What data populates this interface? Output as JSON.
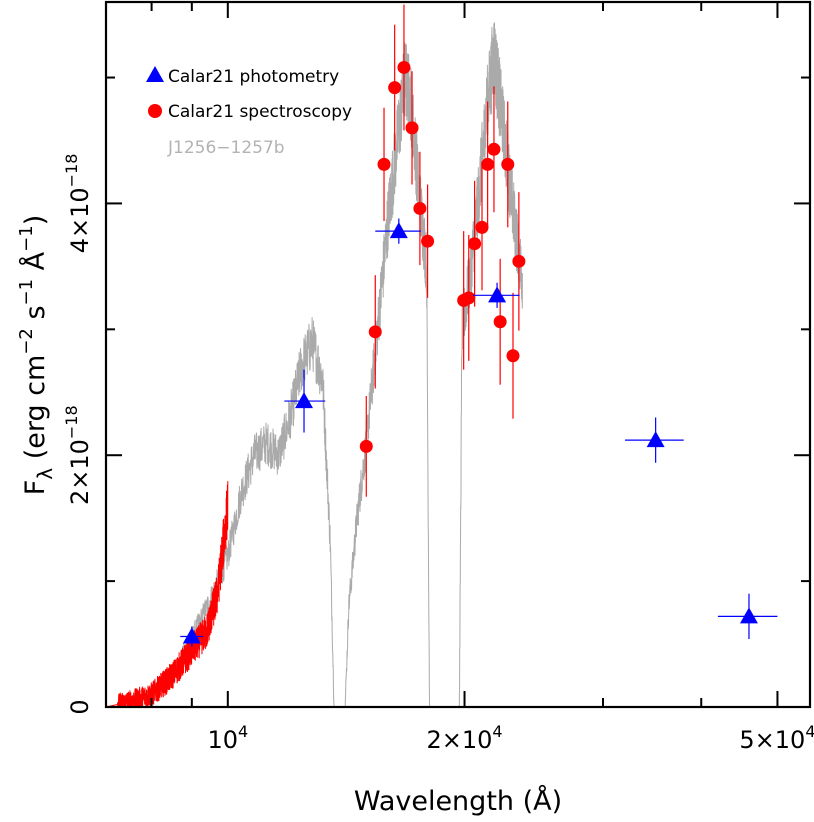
{
  "chart_data": {
    "type": "scatter",
    "xlabel": "Wavelength (Å)",
    "ylabel_parts": {
      "main": "F",
      "sub": "λ",
      "units": "(erg cm",
      "exp1": "−2",
      "s": " s",
      "exp2": "−1",
      "ang": " Å",
      "exp3": "−1",
      "close": ")"
    },
    "x_scale": "log",
    "xlim": [
      7000,
      55000
    ],
    "ylim": [
      0,
      5.6e-18
    ],
    "x_ticks": [
      {
        "value": 10000,
        "mant": "10",
        "exp": "4"
      },
      {
        "value": 20000,
        "mant": "2×10",
        "exp": "4"
      },
      {
        "value": 50000,
        "mant": "5×10",
        "exp": "4"
      }
    ],
    "y_ticks": [
      {
        "value": 0,
        "label": "0"
      },
      {
        "value": 2e-18,
        "mant": "2×10",
        "exp": "−18"
      },
      {
        "value": 4e-18,
        "mant": "4×10",
        "exp": "−18"
      }
    ],
    "y_minor_ticks": [
      1e-18,
      3e-18,
      5e-18
    ],
    "legend_position": "top-left",
    "colors": {
      "photometry": "#0000ff",
      "spectroscopy": "#ff0000",
      "model": "#aaaaaa",
      "optical_spectrum": "#ff0000"
    },
    "series": [
      {
        "name": "Calar21 photometry",
        "marker": "triangle",
        "points": [
          {
            "x": 9000,
            "y": 5.6e-19,
            "xerr": [
              8700,
              9300
            ],
            "yerr": 8e-20
          },
          {
            "x": 12500,
            "y": 2.43e-18,
            "xerr": [
              11800,
              13300
            ],
            "yerr": 2.5e-19
          },
          {
            "x": 16500,
            "y": 3.78e-18,
            "xerr": [
              15400,
              17600
            ],
            "yerr": 1e-19
          },
          {
            "x": 22000,
            "y": 3.27e-18,
            "xerr": [
              20500,
              23500
            ],
            "yerr": 1e-19
          },
          {
            "x": 35000,
            "y": 2.12e-18,
            "xerr": [
              32000,
              38000
            ],
            "yerr": 1.8e-19
          },
          {
            "x": 46000,
            "y": 7.2e-19,
            "xerr": [
              42000,
              50000
            ],
            "yerr": 1.8e-19
          }
        ]
      },
      {
        "name": "Calar21 spectroscopy",
        "marker": "circle",
        "points": [
          {
            "x": 15000,
            "y": 2.07e-18,
            "yerr": 4e-19
          },
          {
            "x": 15400,
            "y": 2.98e-18,
            "yerr": 4.5e-19
          },
          {
            "x": 15800,
            "y": 4.31e-18,
            "yerr": 4.5e-19
          },
          {
            "x": 16300,
            "y": 4.92e-18,
            "yerr": 5e-19
          },
          {
            "x": 16750,
            "y": 5.08e-18,
            "yerr": 5e-19
          },
          {
            "x": 17150,
            "y": 4.6e-18,
            "yerr": 4.5e-19
          },
          {
            "x": 17550,
            "y": 3.96e-18,
            "yerr": 4.5e-19
          },
          {
            "x": 17950,
            "y": 3.7e-18,
            "yerr": 4.5e-19
          },
          {
            "x": 19950,
            "y": 3.23e-18,
            "yerr": 5.5e-19
          },
          {
            "x": 20250,
            "y": 3.25e-18,
            "yerr": 5e-19
          },
          {
            "x": 20600,
            "y": 3.68e-18,
            "yerr": 5e-19
          },
          {
            "x": 21050,
            "y": 3.81e-18,
            "yerr": 5e-19
          },
          {
            "x": 21400,
            "y": 4.31e-18,
            "yerr": 5e-19
          },
          {
            "x": 21800,
            "y": 4.43e-18,
            "yerr": 5e-19
          },
          {
            "x": 22200,
            "y": 3.06e-18,
            "yerr": 5e-19
          },
          {
            "x": 22700,
            "y": 4.31e-18,
            "yerr": 5e-19
          },
          {
            "x": 23050,
            "y": 2.79e-18,
            "yerr": 5e-19
          },
          {
            "x": 23450,
            "y": 3.54e-18,
            "yerr": 5.5e-19
          }
        ]
      },
      {
        "name": "J1256−1257b",
        "marker": "line",
        "anchors": [
          [
            7200,
            0.0
          ],
          [
            7600,
            5e-20
          ],
          [
            8000,
            1e-19
          ],
          [
            8500,
            2.5e-19
          ],
          [
            9000,
            5.5e-19
          ],
          [
            9500,
            8.5e-19
          ],
          [
            10000,
            1.2e-18
          ],
          [
            10400,
            1.7e-18
          ],
          [
            10800,
            2e-18
          ],
          [
            11200,
            2.1e-18
          ],
          [
            11600,
            2e-18
          ],
          [
            12000,
            2.3e-18
          ],
          [
            12400,
            2.7e-18
          ],
          [
            12800,
            2.9e-18
          ],
          [
            13200,
            2.6e-18
          ],
          [
            13500,
            1.3e-18
          ],
          [
            13650,
            0.0
          ],
          [
            14100,
            0.0
          ],
          [
            14250,
            8e-19
          ],
          [
            14600,
            1.5e-18
          ],
          [
            15000,
            2.1e-18
          ],
          [
            15500,
            3e-18
          ],
          [
            16000,
            3.9e-18
          ],
          [
            16500,
            4.6e-18
          ],
          [
            16800,
            5e-18
          ],
          [
            17100,
            4.8e-18
          ],
          [
            17500,
            4.1e-18
          ],
          [
            17900,
            3.5e-18
          ],
          [
            18050,
            0.0
          ],
          [
            19700,
            0.0
          ],
          [
            19850,
            3e-18
          ],
          [
            20300,
            3.4e-18
          ],
          [
            20800,
            4e-18
          ],
          [
            21300,
            4.7e-18
          ],
          [
            21800,
            5.2e-18
          ],
          [
            22200,
            4.8e-18
          ],
          [
            22700,
            4.3e-18
          ],
          [
            23200,
            3.8e-18
          ],
          [
            23700,
            3.4e-18
          ]
        ]
      },
      {
        "name": "optical-spectrum",
        "marker": "line",
        "anchors": [
          [
            7000,
            0.0
          ],
          [
            7600,
            5e-20
          ],
          [
            8000,
            1e-19
          ],
          [
            8500,
            2.5e-19
          ],
          [
            9000,
            4.5e-19
          ],
          [
            9400,
            6e-19
          ],
          [
            9700,
            9e-19
          ],
          [
            10000,
            1.6e-18
          ]
        ]
      }
    ]
  }
}
